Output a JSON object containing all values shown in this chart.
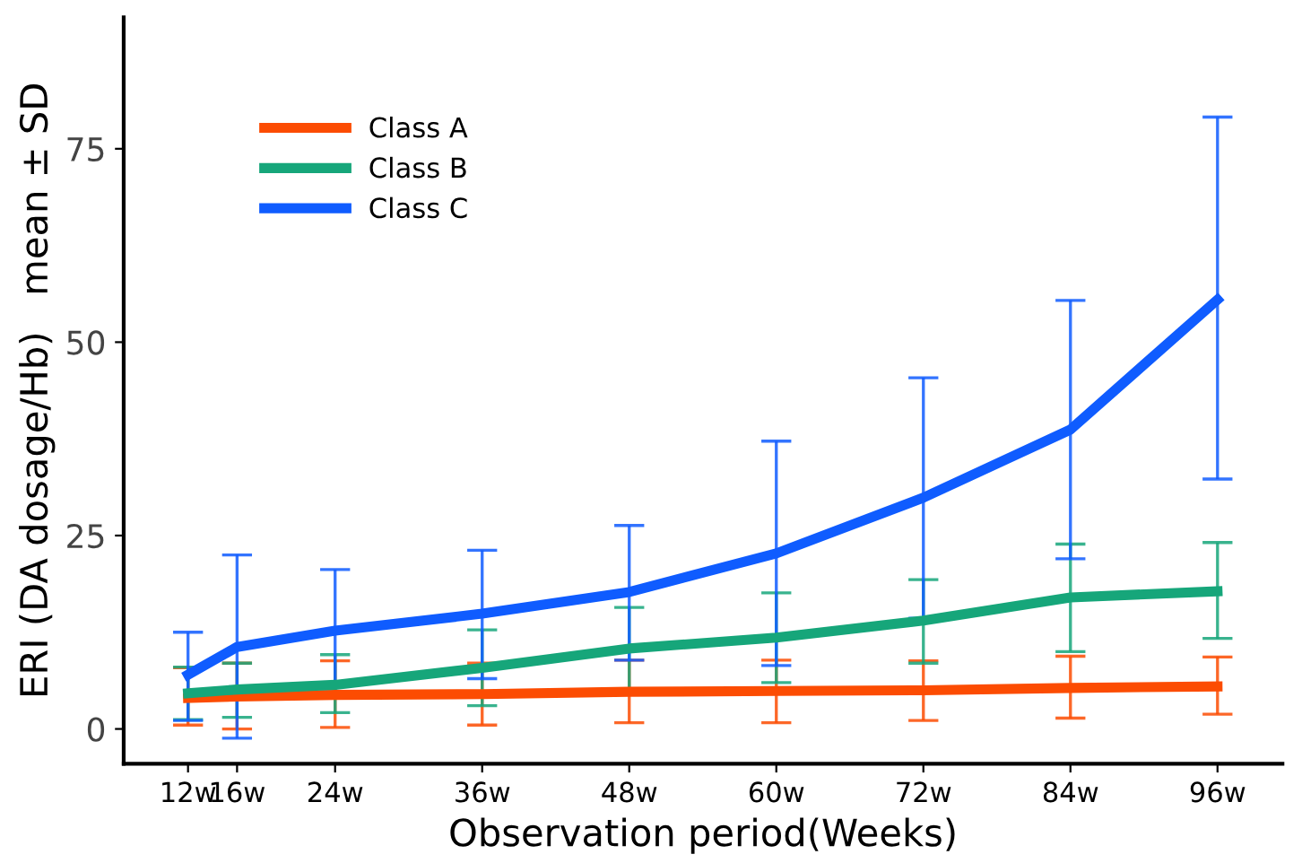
{
  "chart_data": {
    "type": "line",
    "xlabel": "Observation period(Weeks)",
    "ylabel": "ERI (DA dosage/Hb)   mean ± SD",
    "x": [
      12,
      16,
      24,
      36,
      48,
      60,
      72,
      84,
      96
    ],
    "xlim": [
      6.75,
      101.3
    ],
    "xticks": [
      {
        "value": 12,
        "label": "12w"
      },
      {
        "value": 16,
        "label": "16w"
      },
      {
        "value": 24,
        "label": "24w"
      },
      {
        "value": 36,
        "label": "36w"
      },
      {
        "value": 48,
        "label": "48w"
      },
      {
        "value": 60,
        "label": "60w"
      },
      {
        "value": 72,
        "label": "72w"
      },
      {
        "value": 84,
        "label": "84w"
      },
      {
        "value": 96,
        "label": "96w"
      }
    ],
    "ylim": [
      -4.5,
      92
    ],
    "yticks": [
      0,
      25,
      50,
      75
    ],
    "grid": false,
    "legend": "top left",
    "marker": "none",
    "line_style": "solid",
    "series": [
      {
        "name": "Class A",
        "color": "#fc4c02",
        "values": [
          4.0,
          4.2,
          4.4,
          4.5,
          4.8,
          4.9,
          5.0,
          5.3,
          5.5
        ],
        "errors": [
          [
            0.5,
            7.9
          ],
          [
            0,
            8.5
          ],
          [
            0.2,
            8.8
          ],
          [
            0.5,
            8.5
          ],
          [
            0.8,
            8.9
          ],
          [
            0.8,
            8.9
          ],
          [
            1.1,
            8.8
          ],
          [
            1.4,
            9.4
          ],
          [
            1.9,
            9.3
          ]
        ]
      },
      {
        "name": "Class B",
        "color": "#16a67a",
        "values": [
          4.6,
          5.1,
          5.7,
          7.9,
          10.4,
          11.8,
          14.0,
          17.0,
          17.8
        ],
        "errors": [
          [
            1.2,
            8.0
          ],
          [
            1.5,
            8.5
          ],
          [
            2.1,
            9.6
          ],
          [
            3.0,
            12.8
          ],
          [
            5.1,
            15.7
          ],
          [
            6.0,
            17.6
          ],
          [
            8.5,
            19.3
          ],
          [
            10.0,
            23.9
          ],
          [
            11.7,
            24.1
          ]
        ]
      },
      {
        "name": "Class C",
        "color": "#0f5cff",
        "values": [
          7.0,
          10.6,
          12.7,
          14.9,
          17.7,
          22.7,
          29.9,
          38.7,
          55.5
        ],
        "errors": [
          [
            1.1,
            12.5
          ],
          [
            -1.2,
            22.5
          ],
          [
            4.8,
            20.6
          ],
          [
            6.5,
            23.1
          ],
          [
            8.9,
            26.3
          ],
          [
            8.2,
            37.2
          ],
          [
            14.3,
            45.4
          ],
          [
            22.0,
            55.4
          ],
          [
            32.3,
            79.1
          ]
        ]
      }
    ]
  }
}
